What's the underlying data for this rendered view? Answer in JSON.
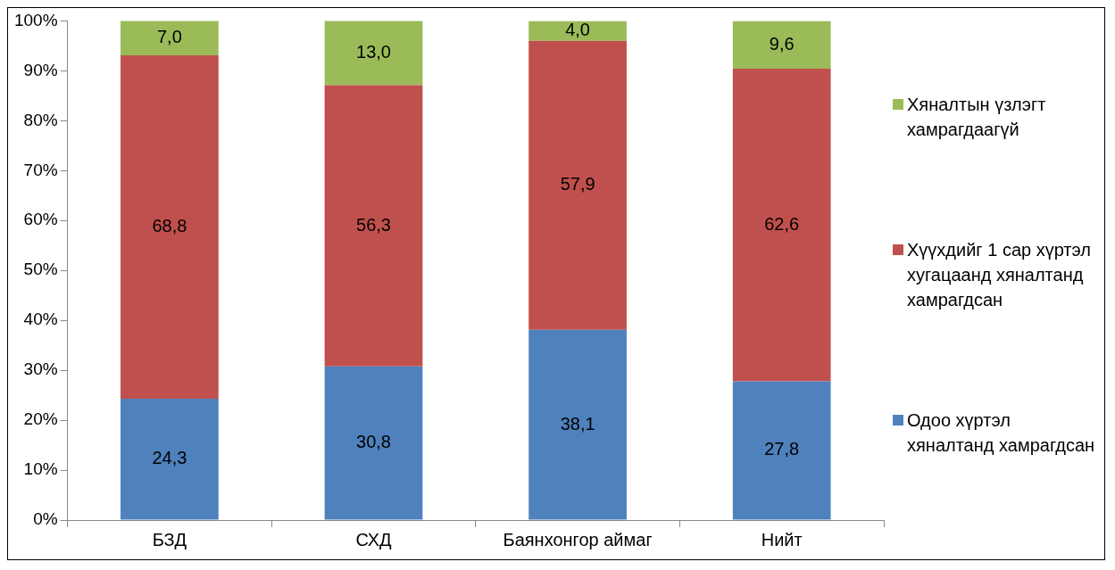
{
  "chart_data": {
    "type": "bar",
    "stacked": true,
    "categories": [
      "БЗД",
      "СХД",
      "Баянхонгор аймаг",
      "Нийт"
    ],
    "series": [
      {
        "name": "Одоо хүртэл хяналтанд хамрагдсан",
        "color": "#4f81bd",
        "values": [
          24.3,
          30.8,
          38.1,
          27.8
        ],
        "value_labels": [
          "24,3",
          "30,8",
          "38,1",
          "27,8"
        ]
      },
      {
        "name": "Хүүхдийг 1 сар хүртэл хугацаанд хяналтанд хамрагдсан",
        "color": "#c0504d",
        "values": [
          68.8,
          56.3,
          57.9,
          62.6
        ],
        "value_labels": [
          "68,8",
          "56,3",
          "57,9",
          "62,6"
        ]
      },
      {
        "name": "Хяналтын үзлэгт хамрагдаагүй",
        "color": "#9bbb59",
        "values": [
          7.0,
          13.0,
          4.0,
          9.6
        ],
        "value_labels": [
          "7,0",
          "13,0",
          "4,0",
          "9,6"
        ]
      }
    ],
    "ylim": [
      0,
      100
    ],
    "yticks": [
      {
        "value": 0,
        "label": "0%"
      },
      {
        "value": 10,
        "label": "10%"
      },
      {
        "value": 20,
        "label": "20%"
      },
      {
        "value": 30,
        "label": "30%"
      },
      {
        "value": 40,
        "label": "40%"
      },
      {
        "value": 50,
        "label": "50%"
      },
      {
        "value": 60,
        "label": "60%"
      },
      {
        "value": 70,
        "label": "70%"
      },
      {
        "value": 80,
        "label": "80%"
      },
      {
        "value": 90,
        "label": "90%"
      },
      {
        "value": 100,
        "label": "100%"
      }
    ],
    "grid": false,
    "legend": "right"
  }
}
